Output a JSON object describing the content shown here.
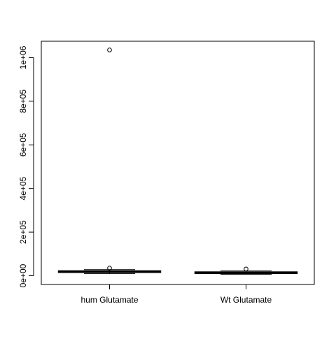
{
  "chart_data": {
    "type": "boxplot",
    "categories": [
      "hum Glutamate",
      "Wt Glutamate"
    ],
    "boxes": [
      {
        "name": "hum Glutamate",
        "min": 10000,
        "q1": 15000,
        "median": 18000,
        "q3": 23000,
        "max": 28000,
        "outliers": [
          1035000,
          35000
        ]
      },
      {
        "name": "Wt Glutamate",
        "min": 7000,
        "q1": 10000,
        "median": 13000,
        "q3": 18000,
        "max": 22000,
        "outliers": [
          31000
        ]
      }
    ],
    "yticks": [
      0,
      200000,
      400000,
      600000,
      800000,
      1000000
    ],
    "ytick_labels": [
      "0e+00",
      "2e+05",
      "4e+05",
      "6e+05",
      "8e+05",
      "1e+06"
    ],
    "ylim": [
      -40000,
      1075000
    ],
    "title": "",
    "xlabel": "",
    "ylabel": ""
  }
}
